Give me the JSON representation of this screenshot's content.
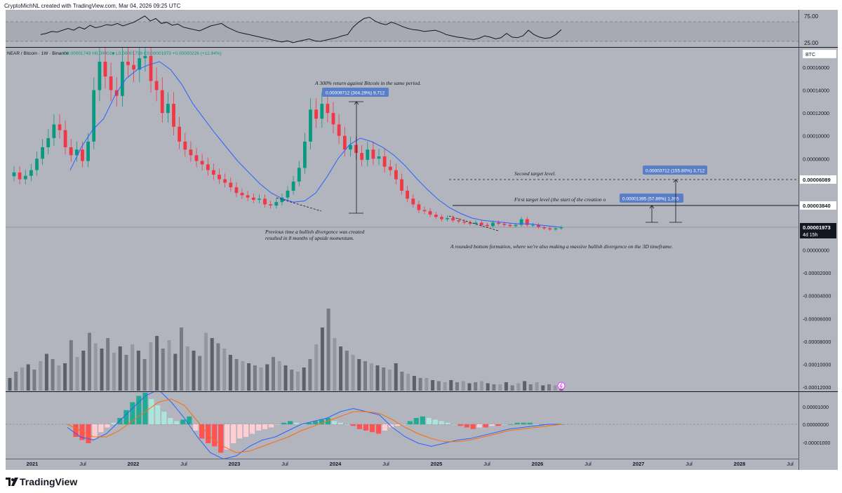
{
  "header": {
    "caption": "CryptoMichNL created with TradingView.com, Mar 04, 2026 09:25 UTC"
  },
  "symbol_bar": {
    "title": "NEAR / Bitcoin · 1W · Binance",
    "ohlc": "O0.00001749  H0.00002■  L0.00001738  C0.00001973  +0.00000226 (+12.94%)"
  },
  "footer": {
    "brand": "TradingView"
  },
  "colors": {
    "background": "#b2b5be",
    "up": "#089981",
    "down": "#f23645",
    "ma": "#2962ff",
    "signal": "#ff6d00",
    "label_box": "#5b7fc7"
  },
  "chart_data": [
    {
      "type": "line",
      "panel": "rsi",
      "yticks": [
        "75.00",
        "25.00"
      ],
      "ylim": [
        20,
        80
      ],
      "series": [
        {
          "values": [
            40,
            42,
            45,
            44,
            47,
            50,
            47,
            52,
            49,
            55,
            51,
            53,
            56,
            55,
            58,
            54,
            57,
            60,
            65,
            70,
            62,
            66,
            58,
            60,
            55,
            57,
            52,
            50,
            48,
            46,
            50,
            54,
            56,
            58,
            52,
            48,
            44,
            42,
            40,
            38,
            36,
            34,
            32,
            30,
            28,
            30,
            27,
            29,
            31,
            33,
            30,
            29,
            31,
            33,
            35,
            38,
            40,
            52,
            60,
            66,
            68,
            62,
            58,
            56,
            60,
            57,
            53,
            50,
            48,
            47,
            45,
            46,
            47,
            44,
            40,
            38,
            36,
            35,
            33,
            32,
            34,
            38,
            36,
            33,
            35,
            42,
            36,
            35,
            38,
            47,
            40,
            36,
            34,
            35,
            40,
            48
          ]
        }
      ]
    },
    {
      "type": "candlestick",
      "panel": "price",
      "title": "NEAR / Bitcoin · 1W · Binance",
      "x_ticks": [
        "2021",
        "Jul",
        "2022",
        "Jul",
        "2023",
        "Jul",
        "2024",
        "Jul",
        "2025",
        "Jul",
        "2026",
        "Jul",
        "2027",
        "Jul",
        "2028",
        "Jul"
      ],
      "y_ticks": [
        "0.00016000",
        "0.00014000",
        "0.00012000",
        "0.00010000",
        "0.00008000",
        "0.00006000",
        "0.00004000",
        "0.00002000",
        "0.00000000",
        "-0.00002000",
        "-0.00004000",
        "-0.00006000",
        "-0.00008000",
        "-0.00010000",
        "-0.00012000"
      ],
      "price_labels": [
        {
          "text": "0.00006089",
          "value": 6.089e-05
        },
        {
          "text": "0.00003840",
          "value": 3.84e-05
        },
        {
          "text": "0.00001973",
          "value": 1.973e-05,
          "sub": "4d 15h"
        }
      ],
      "currency": "BTC",
      "closes": [
        6.8e-05,
        6.2e-05,
        6.5e-05,
        7e-05,
        8e-05,
        9e-05,
        9.8e-05,
        0.00011,
        0.000105,
        9e-05,
        8.3e-05,
        8.8e-05,
        7.8e-05,
        9.5e-05,
        0.00014,
        0.000165,
        0.000152,
        0.00014,
        0.000135,
        0.000165,
        0.000162,
        0.000158,
        0.000168,
        0.00017,
        0.000148,
        0.00014,
        0.00012,
        0.000128,
        0.000108,
        9.5e-05,
        8.8e-05,
        8.3e-05,
        7.8e-05,
        7.5e-05,
        7e-05,
        6.6e-05,
        6.2e-05,
        5.9e-05,
        5.5e-05,
        5e-05,
        4.8e-05,
        4.6e-05,
        4.4e-05,
        4.5e-05,
        4e-05,
        3.9e-05,
        4.2e-05,
        4.6e-05,
        5.2e-05,
        6e-05,
        7.2e-05,
        9.5e-05,
        0.000123,
        0.000115,
        0.000128,
        0.00012,
        0.00011,
        0.0001,
        8.8e-05,
        9.2e-05,
        8.5e-05,
        7.9e-05,
        8.8e-05,
        8e-05,
        8.2e-05,
        7.3e-05,
        7e-05,
        6.2e-05,
        5.2e-05,
        4.5e-05,
        4e-05,
        3.5e-05,
        3.4e-05,
        3.1e-05,
        2.9e-05,
        2.7e-05,
        2.8e-05,
        2.6e-05,
        2.5e-05,
        2.4e-05,
        2.3e-05,
        2.4e-05,
        2.2e-05,
        2.1e-05,
        2.4e-05,
        2.3e-05,
        2.2e-05,
        2.1e-05,
        2.2e-05,
        2.7e-05,
        2.2e-05,
        2.2e-05,
        2e-05,
        1.9e-05,
        1.8e-05,
        1.9e-05,
        1.973e-05
      ],
      "ma_values": [
        7e-05,
        9e-05,
        0.000105,
        0.000115,
        0.000135,
        0.00015,
        0.000158,
        0.000162,
        0.000165,
        0.000158,
        0.000145,
        0.000128,
        0.000115,
        0.000102,
        9e-05,
        7.8e-05,
        6.8e-05,
        5.8e-05,
        5e-05,
        4.5e-05,
        4.2e-05,
        4.3e-05,
        5e-05,
        6.4e-05,
        8e-05,
        9.2e-05,
        9.8e-05,
        9.5e-05,
        9e-05,
        8.3e-05,
        7.4e-05,
        6.3e-05,
        5.3e-05,
        4.4e-05,
        3.7e-05,
        3.2e-05,
        2.8e-05,
        2.6e-05,
        2.5e-05,
        2.4e-05,
        2.3e-05,
        2.3e-05,
        2.2e-05,
        2.1e-05,
        2e-05
      ],
      "annotations": [
        "A 300% return against Bitcoin in the same period.",
        "Second target level.",
        "First target level (the start of the creation o",
        "Previous time a bullish divergence was created",
        "resulted in 8 months of upside momentum.",
        "A rounded bottom formation, where we're also making a massive bullish divergence on the 3D timeframe."
      ],
      "measure_labels": [
        "0.00009712 (304.29%) 9,712",
        "0.00003712 (155.80%) 3,712",
        "0.00001395 (57.89%) 1,395"
      ]
    },
    {
      "type": "bar",
      "panel": "volume",
      "values": [
        12,
        18,
        22,
        25,
        20,
        28,
        35,
        30,
        24,
        26,
        48,
        32,
        38,
        55,
        45,
        40,
        50,
        36,
        42,
        34,
        44,
        38,
        30,
        46,
        52,
        40,
        48,
        35,
        60,
        42,
        38,
        33,
        55,
        50,
        45,
        40,
        34,
        30,
        28,
        26,
        24,
        22,
        25,
        32,
        28,
        24,
        20,
        18,
        22,
        30,
        44,
        60,
        78,
        50,
        42,
        38,
        34,
        30,
        28,
        26,
        24,
        22,
        20,
        26,
        18,
        16,
        14,
        12,
        12,
        10,
        9,
        8,
        10,
        8,
        9,
        7,
        8,
        9,
        7,
        6,
        6,
        8,
        5,
        7,
        9,
        6,
        8,
        5,
        6,
        5,
        5
      ]
    },
    {
      "type": "bar",
      "panel": "macd",
      "y_ticks": [
        "0.00001000",
        "0.00000000",
        "-0.00001000"
      ],
      "values": [
        -8,
        -10,
        -12,
        -9,
        -5,
        -2,
        1,
        4,
        9,
        14,
        18,
        20,
        16,
        12,
        8,
        4,
        2,
        3,
        5,
        -4,
        -9,
        -12,
        -14,
        -18,
        -16,
        -12,
        -9,
        -8,
        -6,
        -4,
        -3,
        -2,
        0,
        1,
        2,
        1,
        0,
        1,
        2,
        3,
        4,
        2,
        1,
        0,
        -1,
        -3,
        -4,
        -5,
        -6,
        -4,
        -2,
        -1,
        0,
        2,
        4,
        5,
        4,
        3,
        2,
        1,
        0,
        -1,
        -2,
        -3,
        -2,
        -2,
        -1,
        -1,
        0,
        0,
        1,
        1,
        1,
        0,
        0,
        0,
        0,
        0
      ],
      "series": [
        {
          "values": [
            -2,
            -8,
            -10,
            -6,
            2,
            10,
            18,
            22,
            14,
            4,
            -8,
            -18,
            -22,
            -20,
            -14,
            -10,
            -8,
            -4,
            0,
            2,
            4,
            8,
            10,
            8,
            6,
            -2,
            -8,
            -12,
            -14,
            -12,
            -10,
            -9,
            -7,
            -5,
            -3,
            -2,
            -1,
            0,
            0
          ]
        },
        {
          "values": [
            0,
            -4,
            -8,
            -8,
            -4,
            2,
            8,
            14,
            16,
            12,
            2,
            -8,
            -14,
            -18,
            -17,
            -14,
            -11,
            -8,
            -4,
            -1,
            2,
            5,
            8,
            8,
            7,
            3,
            -2,
            -6,
            -9,
            -11,
            -11,
            -10,
            -8,
            -6,
            -4,
            -3,
            -2,
            -1,
            0
          ]
        }
      ]
    }
  ]
}
